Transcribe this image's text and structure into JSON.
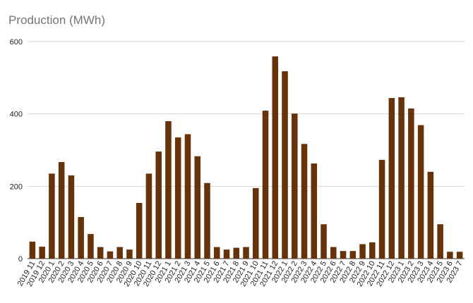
{
  "chart_data": {
    "type": "bar",
    "title": "Production (MWh)",
    "xlabel": "",
    "ylabel": "",
    "ylim": [
      0,
      600
    ],
    "yticks": [
      0,
      200,
      400,
      600
    ],
    "grid": true,
    "legend": "none",
    "bar_color": "#683208",
    "grid_color": "#d4d4d4",
    "categories": [
      "2019 11",
      "2019 12",
      "2020 1",
      "2020 2",
      "2020 3",
      "2020 4",
      "2020 5",
      "2020 6",
      "2020 7",
      "2020 8",
      "2020 9",
      "2020 10",
      "2020 11",
      "2020 12",
      "2021 1",
      "2021 2",
      "2021 3",
      "2021 4",
      "2021 5",
      "2021 6",
      "2021 7",
      "2021 8",
      "2021 9",
      "2021 10",
      "2021 11",
      "2021 12",
      "2022 1",
      "2022 2",
      "2022 3",
      "2022 4",
      "2022 5",
      "2022 6",
      "2022 7",
      "2022 8",
      "2022 9",
      "2022 10",
      "2022 11",
      "2022 12",
      "2023 1",
      "2023 2",
      "2023 3",
      "2023 4",
      "2023 5",
      "2023 6",
      "2023 7"
    ],
    "values": [
      47,
      33,
      235,
      267,
      230,
      115,
      68,
      32,
      20,
      32,
      25,
      154,
      235,
      296,
      380,
      335,
      344,
      283,
      209,
      32,
      25,
      30,
      32,
      195,
      409,
      559,
      518,
      401,
      317,
      263,
      95,
      32,
      21,
      21,
      40,
      45,
      273,
      444,
      446,
      415,
      369,
      240,
      95,
      19,
      19
    ]
  }
}
